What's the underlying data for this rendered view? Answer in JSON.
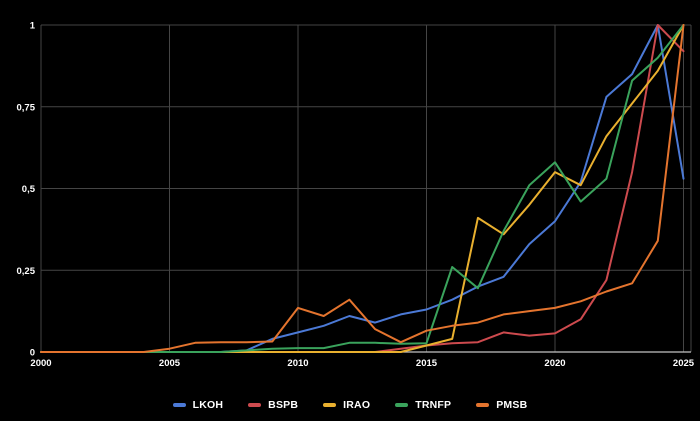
{
  "chart_data": {
    "type": "line",
    "title": "",
    "xlabel": "",
    "ylabel": "",
    "xlim": [
      2000,
      2025
    ],
    "ylim": [
      0,
      1
    ],
    "grid": true,
    "legend_position": "bottom",
    "background_color": "#000000",
    "grid_color": "#454545",
    "axis_line_color": "#c4c4c4",
    "tick_text_color": "#ffffff",
    "x": [
      2000,
      2001,
      2002,
      2003,
      2004,
      2005,
      2006,
      2007,
      2008,
      2009,
      2010,
      2011,
      2012,
      2013,
      2014,
      2015,
      2016,
      2017,
      2018,
      2019,
      2020,
      2021,
      2022,
      2023,
      2024,
      2025
    ],
    "x_tick_labels": [
      "2000",
      "2005",
      "2010",
      "2015",
      "2020",
      "2025"
    ],
    "x_tick_values": [
      2000,
      2005,
      2010,
      2015,
      2020,
      2025
    ],
    "y_tick_labels": [
      "0",
      "0,25",
      "0,5",
      "0,75",
      "1"
    ],
    "y_tick_values": [
      0,
      0.25,
      0.5,
      0.75,
      1
    ],
    "series": [
      {
        "name": "LKOH",
        "color": "#4b79d6",
        "values": [
          0,
          0,
          0,
          0,
          0,
          0,
          0,
          0,
          0.005,
          0.04,
          0.06,
          0.08,
          0.11,
          0.09,
          0.115,
          0.13,
          0.16,
          0.2,
          0.23,
          0.33,
          0.4,
          0.52,
          0.78,
          0.85,
          1,
          0.53
        ]
      },
      {
        "name": "BSPB",
        "color": "#cd4a4e",
        "values": [
          0,
          0,
          0,
          0,
          0,
          0,
          0,
          0,
          0,
          0,
          0,
          0,
          0,
          0,
          0.01,
          0.02,
          0.027,
          0.03,
          0.06,
          0.05,
          0.057,
          0.1,
          0.22,
          0.55,
          1,
          0.92
        ]
      },
      {
        "name": "IRAO",
        "color": "#e9b02f",
        "values": [
          0,
          0,
          0,
          0,
          0,
          0,
          0,
          0,
          0,
          0,
          0,
          0,
          0,
          0,
          0,
          0.02,
          0.04,
          0.41,
          0.36,
          0.45,
          0.55,
          0.51,
          0.66,
          0.76,
          0.86,
          1
        ]
      },
      {
        "name": "TRNFP",
        "color": "#3aa35c",
        "values": [
          0,
          0,
          0,
          0,
          0,
          0,
          0,
          0,
          0.005,
          0.01,
          0.012,
          0.012,
          0.028,
          0.028,
          0.025,
          0.027,
          0.26,
          0.195,
          0.37,
          0.51,
          0.58,
          0.46,
          0.53,
          0.83,
          0.9,
          1
        ]
      },
      {
        "name": "PMSB",
        "color": "#e4742e",
        "values": [
          0,
          0,
          0,
          0,
          0,
          0.01,
          0.028,
          0.03,
          0.03,
          0.032,
          0.135,
          0.11,
          0.16,
          0.07,
          0.03,
          0.065,
          0.08,
          0.09,
          0.115,
          0.125,
          0.135,
          0.155,
          0.185,
          0.21,
          0.34,
          1
        ]
      }
    ]
  }
}
